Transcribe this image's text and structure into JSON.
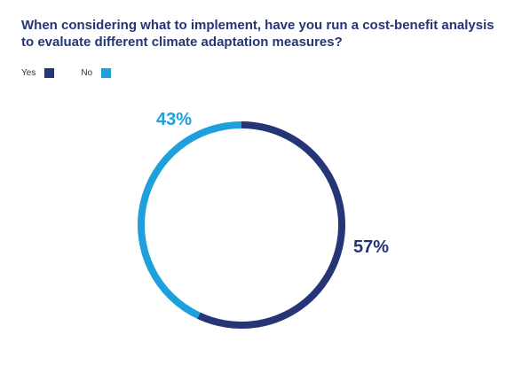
{
  "chart_data": {
    "type": "pie",
    "title": "When considering what to implement, have you run a cost-benefit analysis to evaluate different climate adaptation measures?",
    "categories": [
      "Yes",
      "No"
    ],
    "values": [
      57,
      43
    ],
    "data_labels": [
      "57%",
      "43%"
    ],
    "colors": [
      "#263576",
      "#1fa0dc"
    ],
    "legend": "top-left",
    "style": "donut"
  }
}
